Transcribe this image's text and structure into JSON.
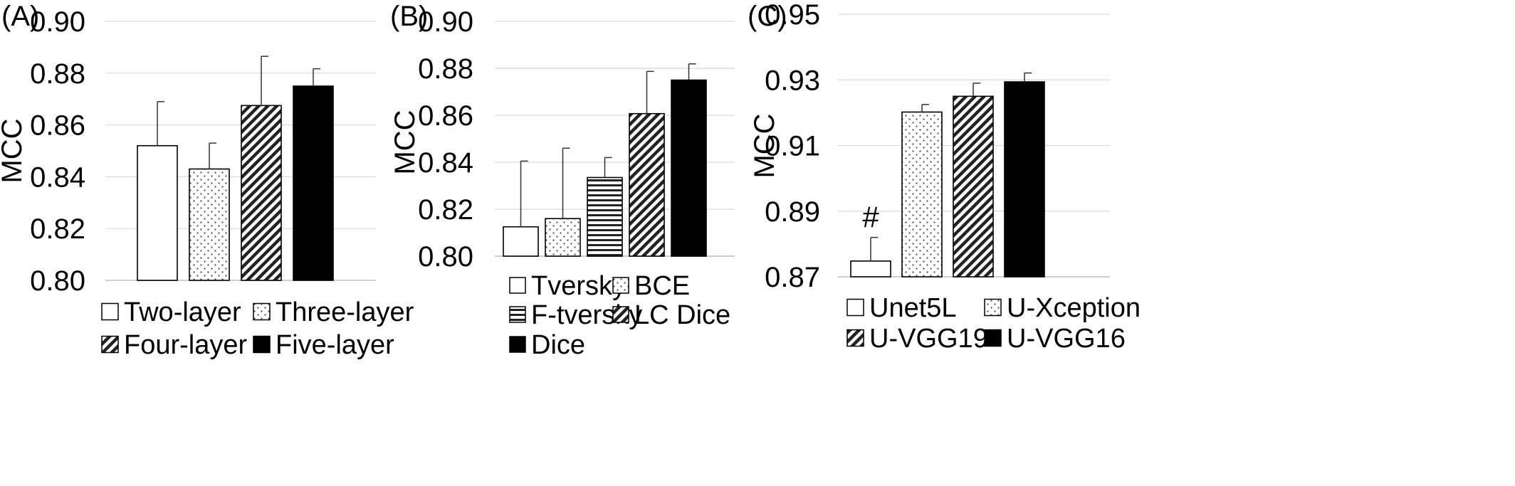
{
  "chart_data": [
    {
      "type": "bar",
      "panel_label": "(A)",
      "title": "",
      "xlabel": "",
      "ylabel": "MCC",
      "ylim": [
        0.8,
        0.9
      ],
      "yticks": [
        "0.80",
        "0.82",
        "0.84",
        "0.86",
        "0.88",
        "0.90"
      ],
      "grid": true,
      "legend_position": "bottom",
      "categories": [
        "Two-layer",
        "Three-layer",
        "Four-layer",
        "Five-layer"
      ],
      "values": [
        0.852,
        0.843,
        0.8675,
        0.875
      ],
      "errors": [
        0.017,
        0.01,
        0.019,
        0.0067
      ],
      "patterns": [
        "white",
        "dots",
        "diagonal",
        "black"
      ]
    },
    {
      "type": "bar",
      "panel_label": "(B)",
      "title": "",
      "xlabel": "",
      "ylabel": "MCC",
      "ylim": [
        0.8,
        0.9
      ],
      "yticks": [
        "0.80",
        "0.82",
        "0.84",
        "0.86",
        "0.88",
        "0.90"
      ],
      "grid": true,
      "legend_position": "bottom",
      "categories": [
        "Tversky",
        "BCE",
        "F-tversky",
        "LC Dice",
        "Dice"
      ],
      "values": [
        0.8125,
        0.816,
        0.8335,
        0.8607,
        0.875
      ],
      "errors": [
        0.028,
        0.03,
        0.0085,
        0.018,
        0.0069
      ],
      "patterns": [
        "white",
        "dots",
        "horizontal",
        "diagonal",
        "black"
      ]
    },
    {
      "type": "bar",
      "panel_label": "(C)",
      "title": "",
      "xlabel": "",
      "ylabel": "MCC",
      "ylim": [
        0.87,
        0.95
      ],
      "yticks": [
        "0.87",
        "0.89",
        "0.91",
        "0.93",
        "0.95"
      ],
      "grid": true,
      "legend_position": "bottom",
      "categories": [
        "Unet5L",
        "U-Xception",
        "U-VGG19",
        "U-VGG16"
      ],
      "values": [
        0.8748,
        0.9202,
        0.925,
        0.9294
      ],
      "errors": [
        0.0072,
        0.0023,
        0.004,
        0.0027
      ],
      "patterns": [
        "white",
        "dots",
        "diagonal",
        "black"
      ],
      "annotations": [
        {
          "category": "Unet5L",
          "text": "#"
        }
      ]
    }
  ]
}
